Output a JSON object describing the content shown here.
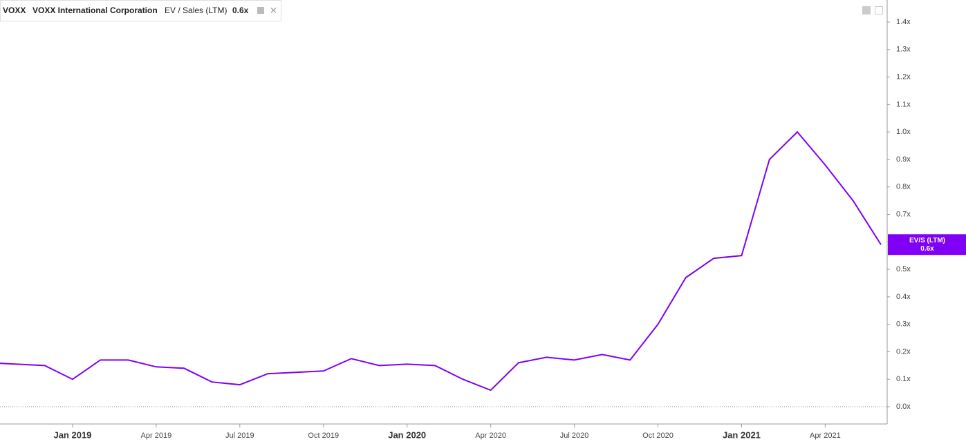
{
  "header": {
    "ticker": "VOXX",
    "company": "VOXX International Corporation",
    "metric": "EV / Sales (LTM)",
    "metric_value": "0.6x"
  },
  "current": {
    "label": "EV/S (LTM)",
    "value": "0.6x"
  },
  "chart_data": {
    "type": "line",
    "x": [
      "2018-10",
      "2018-11",
      "2018-12",
      "2019-01",
      "2019-02",
      "2019-03",
      "2019-04",
      "2019-05",
      "2019-06",
      "2019-07",
      "2019-08",
      "2019-09",
      "2019-10",
      "2019-11",
      "2019-12",
      "2020-01",
      "2020-02",
      "2020-03",
      "2020-04",
      "2020-05",
      "2020-06",
      "2020-07",
      "2020-08",
      "2020-09",
      "2020-10",
      "2020-11",
      "2020-12",
      "2021-01",
      "2021-02",
      "2021-03",
      "2021-04",
      "2021-05",
      "2021-06"
    ],
    "series": [
      {
        "name": "EV/S (LTM)",
        "color": "#7f00f5",
        "values": [
          0.16,
          0.155,
          0.15,
          0.1,
          0.17,
          0.17,
          0.145,
          0.14,
          0.09,
          0.08,
          0.12,
          0.125,
          0.13,
          0.175,
          0.15,
          0.155,
          0.15,
          0.1,
          0.06,
          0.16,
          0.18,
          0.17,
          0.19,
          0.17,
          0.3,
          0.47,
          0.54,
          0.55,
          0.9,
          1.0,
          0.88,
          0.75,
          0.59
        ]
      }
    ],
    "xlim": [
      "2018-10",
      "2021-06"
    ],
    "xticks": [
      {
        "value": "2019-01",
        "label": "Jan 2019"
      },
      {
        "value": "2019-04",
        "label": "Apr 2019"
      },
      {
        "value": "2019-07",
        "label": "Jul 2019"
      },
      {
        "value": "2019-10",
        "label": "Oct 2019"
      },
      {
        "value": "2020-01",
        "label": "Jan 2020"
      },
      {
        "value": "2020-04",
        "label": "Apr 2020"
      },
      {
        "value": "2020-07",
        "label": "Jul 2020"
      },
      {
        "value": "2020-10",
        "label": "Oct 2020"
      },
      {
        "value": "2021-01",
        "label": "Jan 2021"
      },
      {
        "value": "2021-04",
        "label": "Apr 2021"
      }
    ],
    "ylim": [
      0,
      1.4
    ],
    "yticks": [
      {
        "value": 0,
        "label": "0.0x"
      },
      {
        "value": 0.1,
        "label": "0.1x"
      },
      {
        "value": 0.2,
        "label": "0.2x"
      },
      {
        "value": 0.3,
        "label": "0.3x"
      },
      {
        "value": 0.4,
        "label": "0.4x"
      },
      {
        "value": 0.5,
        "label": "0.5x"
      },
      {
        "value": 0.6,
        "label": "0.6x"
      },
      {
        "value": 0.7,
        "label": "0.7x"
      },
      {
        "value": 0.8,
        "label": "0.8x"
      },
      {
        "value": 0.9,
        "label": "0.9x"
      },
      {
        "value": 1.0,
        "label": "1.0x"
      },
      {
        "value": 1.1,
        "label": "1.1x"
      },
      {
        "value": 1.2,
        "label": "1.2x"
      },
      {
        "value": 1.3,
        "label": "1.3x"
      },
      {
        "value": 1.4,
        "label": "1.4x"
      }
    ]
  }
}
